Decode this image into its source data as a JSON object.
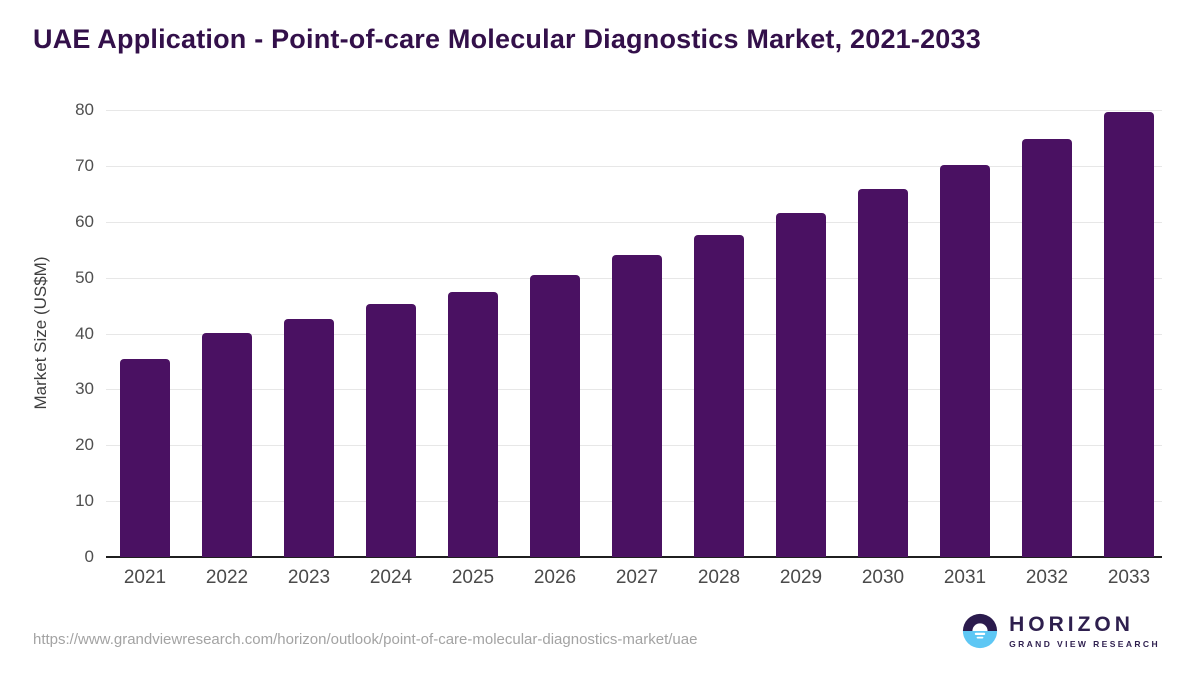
{
  "chart_data": {
    "type": "bar",
    "title": "UAE Application - Point-of-care Molecular Diagnostics Market, 2021-2033",
    "categories": [
      "2021",
      "2022",
      "2023",
      "2024",
      "2025",
      "2026",
      "2027",
      "2028",
      "2029",
      "2030",
      "2031",
      "2032",
      "2033"
    ],
    "values": [
      35.5,
      40.1,
      42.6,
      45.2,
      47.4,
      50.5,
      54.0,
      57.6,
      61.5,
      65.8,
      70.2,
      74.9,
      79.6
    ],
    "xlabel": "",
    "ylabel": "Market Size (US$M)",
    "ylim": [
      0,
      80
    ],
    "yticks": [
      0,
      10,
      20,
      30,
      40,
      50,
      60,
      70,
      80
    ],
    "grid": true,
    "legend": "none",
    "bar_color": "#4a1162",
    "gridline_color": "#e7e7e7",
    "axis_color": "#1f1f1f"
  },
  "footer": {
    "source_url": "https://www.grandviewresearch.com/horizon/outlook/point-of-care-molecular-diagnostics-market/uae"
  },
  "logo": {
    "name": "HORIZON",
    "subtitle": "GRAND VIEW RESEARCH",
    "purple": "#2e1f4e",
    "blue": "#5ec7f4"
  },
  "colors": {
    "title": "#33104a",
    "background": "#ffffff"
  }
}
